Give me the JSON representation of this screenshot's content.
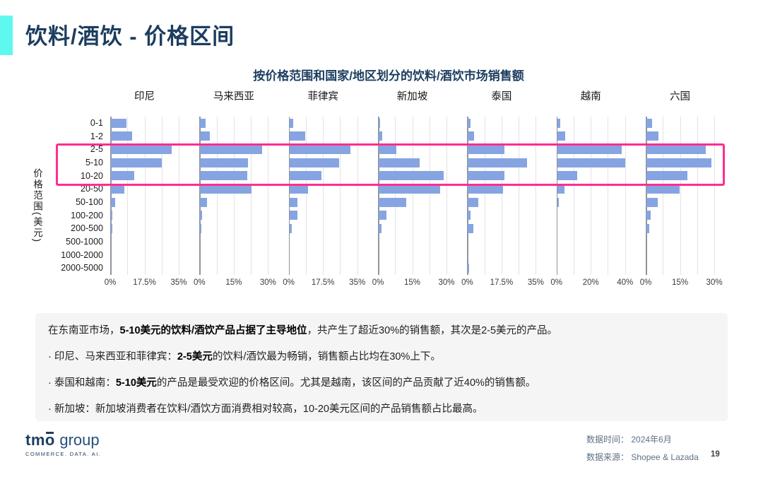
{
  "page": {
    "title": "饮料/酒饮 - 价格区间",
    "page_number": "19"
  },
  "colors": {
    "navy": "#1C3D5F",
    "accent_cyan": "#5FF8EE",
    "bar_blue": "#86A4E1",
    "highlight_pink": "#FF2D8F"
  },
  "chart_data": {
    "type": "bar",
    "orientation": "horizontal",
    "title": "按价格范围和国家/地区划分的饮料/酒饮市场销售额",
    "ylabel": "价格范围(美元)",
    "value_unit": "%",
    "grid": true,
    "categories": [
      "0-1",
      "1-2",
      "2-5",
      "5-10",
      "10-20",
      "20-50",
      "50-100",
      "100-200",
      "200-500",
      "500-1000",
      "1000-2000",
      "2000-5000"
    ],
    "panels": [
      {
        "name": "印尼",
        "xlim": [
          0,
          35
        ],
        "ticks": [
          "0%",
          "17.5%",
          "35%"
        ],
        "values": [
          8,
          11,
          31,
          26,
          12,
          7,
          2,
          0.4,
          0.7,
          0,
          0,
          0
        ]
      },
      {
        "name": "马来西亚",
        "xlim": [
          0,
          30
        ],
        "ticks": [
          "0%",
          "15%",
          "30%"
        ],
        "values": [
          2.4,
          4.2,
          27,
          21,
          20.5,
          22.5,
          2.9,
          0.9,
          0.6,
          0,
          0,
          0
        ]
      },
      {
        "name": "菲律宾",
        "xlim": [
          0,
          35
        ],
        "ticks": [
          "0%",
          "17.5%",
          "35%"
        ],
        "values": [
          2,
          8,
          31,
          25.5,
          16.5,
          9.5,
          4.2,
          4,
          1.2,
          0,
          0,
          0
        ]
      },
      {
        "name": "新加坡",
        "xlim": [
          0,
          30
        ],
        "ticks": [
          "0%",
          "15%",
          "30%"
        ],
        "values": [
          0.3,
          1.5,
          7.8,
          18,
          28.5,
          27,
          12,
          3.5,
          1.3,
          0,
          0,
          0
        ]
      },
      {
        "name": "泰国",
        "xlim": [
          0,
          35
        ],
        "ticks": [
          "0%",
          "17.5%",
          "35%"
        ],
        "values": [
          1.2,
          3.2,
          18.5,
          30,
          18.5,
          18,
          5.3,
          1.2,
          2.6,
          0,
          0,
          0.6
        ]
      },
      {
        "name": "越南",
        "xlim": [
          0,
          40
        ],
        "ticks": [
          "0%",
          "20%",
          "40%"
        ],
        "values": [
          1.8,
          4.6,
          37.5,
          39.5,
          11.8,
          4.3,
          1.1,
          0,
          0,
          0,
          0,
          0
        ]
      },
      {
        "name": "六国",
        "xlim": [
          0,
          30
        ],
        "ticks": [
          "0%",
          "15%",
          "30%"
        ],
        "values": [
          2.5,
          5.3,
          26,
          28.5,
          18,
          14.5,
          4.8,
          1.8,
          1.3,
          0,
          0,
          0
        ]
      }
    ],
    "highlight": {
      "categories": [
        "2-5",
        "5-10",
        "10-20"
      ],
      "color": "#FF2D8F"
    }
  },
  "insights": {
    "lines": [
      {
        "segments": [
          {
            "t": "在东南亚市场，",
            "b": false
          },
          {
            "t": "5-10美元的饮料/酒饮产品占据了主导地位",
            "b": true
          },
          {
            "t": "，共产生了超近30%的销售额，其次是2-5美元的产品。",
            "b": false
          }
        ]
      },
      {
        "segments": [
          {
            "t": "· 印尼、马来西亚和菲律宾：",
            "b": false
          },
          {
            "t": "2-5美元",
            "b": true
          },
          {
            "t": "的饮料/酒饮最为畅销，销售额占比均在30%上下。",
            "b": false
          }
        ]
      },
      {
        "segments": [
          {
            "t": "· 泰国和越南：",
            "b": false
          },
          {
            "t": "5-10美元",
            "b": true
          },
          {
            "t": "的产品是最受欢迎的价格区间。尤其是越南，该区间的产品贡献了近40%的销售额。",
            "b": false
          }
        ]
      },
      {
        "segments": [
          {
            "t": "· 新加坡：新加坡消费者在饮料/酒饮方面消费相对较高，10-20美元区间的产品销售额占比最高。",
            "b": false
          }
        ]
      }
    ]
  },
  "footer": {
    "logo_tm": "tm",
    "logo_o": "o",
    "logo_group": "group",
    "logo_sub": "COMMERCE. DATA. AI.",
    "data_time_label": "数据时间：",
    "data_time": "2024年6月",
    "data_source_label": "数据来源：",
    "data_source": "Shopee & Lazada"
  }
}
